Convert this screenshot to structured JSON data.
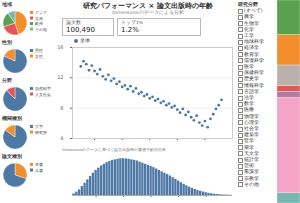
{
  "title": "研究パフォーマンス × 論文出版時の年齢",
  "subtitle": "Dimensionsのデータによる分析",
  "caption": "Dimensionsのデータに基づく論文出版時の著者年齢別分析",
  "kpis": [
    {
      "label": "論文数",
      "value": "100,490"
    },
    {
      "label": "トップ1%",
      "value": "1.2%"
    }
  ],
  "filter_list": {
    "title": "研究分野",
    "items": [
      "(すべて)",
      "農学",
      "生物学",
      "化学",
      "工学",
      "地球科学",
      "経済学",
      "教育学",
      "環境科学",
      "医学",
      "保健科学",
      "歴史学",
      "情報科学",
      "言語学",
      "法学",
      "数学",
      "医療",
      "物理学",
      "心理学",
      "社会学",
      "建築学",
      "哲学",
      "薬学",
      "天文学",
      "統計学",
      "芸術",
      "看護学",
      "宗教学",
      "その他"
    ]
  },
  "chart_data": [
    {
      "type": "pie",
      "title": "地域",
      "categories": [
        "アジア",
        "北米",
        "欧州",
        "その他"
      ],
      "values": [
        45,
        25,
        20,
        10
      ],
      "colors": [
        "#f28e2b",
        "#e15759",
        "#59a14f",
        "#76b7b2"
      ]
    },
    {
      "type": "pie",
      "title": "性別",
      "categories": [
        "男性",
        "女性"
      ],
      "values": [
        82,
        18
      ],
      "colors": [
        "#4e79a7",
        "#f28e2b"
      ]
    },
    {
      "type": "pie",
      "title": "分野",
      "categories": [
        "自然科学",
        "人文社会"
      ],
      "values": [
        88,
        12
      ],
      "colors": [
        "#4e79a7",
        "#e15759"
      ]
    },
    {
      "type": "pie",
      "title": "機関種別",
      "categories": [
        "大学",
        "研究所"
      ],
      "values": [
        85,
        15
      ],
      "colors": [
        "#4e79a7",
        "#f28e2b"
      ]
    },
    {
      "type": "pie",
      "title": "論文種別",
      "categories": [
        "単著",
        "共著"
      ],
      "values": [
        30,
        70
      ],
      "colors": [
        "#f28e2b",
        "#4e79a7"
      ]
    },
    {
      "type": "scatter",
      "legend": "top-left",
      "grid": true,
      "marker": "circle",
      "x": [
        25,
        26,
        27,
        28,
        29,
        30,
        31,
        32,
        33,
        34,
        35,
        36,
        37,
        38,
        39,
        40,
        41,
        42,
        43,
        44,
        45,
        46,
        47,
        48,
        49,
        50,
        51,
        52,
        53,
        54,
        55,
        56,
        57,
        58,
        59,
        60,
        61,
        62,
        63,
        64,
        65,
        66,
        67,
        68,
        69,
        70,
        71,
        72,
        73,
        74,
        75,
        76
      ],
      "series": [
        {
          "name": "全体",
          "color": "#4e79a7",
          "values": [
            13.5,
            14.2,
            13.8,
            13.0,
            13.6,
            12.9,
            12.5,
            13.1,
            12.2,
            11.8,
            12.4,
            11.6,
            11.9,
            11.2,
            11.5,
            10.8,
            11.0,
            10.5,
            10.9,
            10.2,
            10.6,
            9.9,
            10.1,
            9.6,
            9.8,
            9.3,
            9.5,
            9.0,
            9.2,
            8.7,
            8.9,
            8.4,
            8.6,
            8.1,
            8.3,
            7.8,
            7.4,
            7.9,
            7.1,
            7.5,
            6.8,
            6.4,
            7.0,
            6.1,
            5.7,
            6.3,
            5.5,
            6.6,
            7.2,
            7.9,
            8.4,
            9.1
          ]
        }
      ],
      "xlim": [
        22,
        80
      ],
      "xticks": [
        30,
        40,
        50,
        60,
        70
      ],
      "ylim": [
        4,
        16
      ],
      "yticks": [
        4,
        8,
        12,
        16
      ]
    },
    {
      "type": "bar",
      "tick_labels": "x",
      "color": "#4e79a7",
      "categories": [
        22,
        23,
        24,
        25,
        26,
        27,
        28,
        29,
        30,
        31,
        32,
        33,
        34,
        35,
        36,
        37,
        38,
        39,
        40,
        41,
        42,
        43,
        44,
        45,
        46,
        47,
        48,
        49,
        50,
        51,
        52,
        53,
        54,
        55,
        56,
        57,
        58,
        59,
        60,
        61,
        62,
        63,
        64,
        65,
        66,
        67,
        68,
        69,
        70,
        71,
        72,
        73,
        74,
        75,
        76,
        77,
        78,
        79
      ],
      "values": [
        150,
        300,
        500,
        800,
        1100,
        1400,
        1700,
        2000,
        2250,
        2450,
        2650,
        2800,
        2950,
        3050,
        3150,
        3200,
        3250,
        3300,
        3300,
        3280,
        3250,
        3200,
        3150,
        3100,
        3000,
        2900,
        2800,
        2700,
        2600,
        2500,
        2380,
        2250,
        2120,
        2000,
        1880,
        1750,
        1600,
        1450,
        1300,
        1150,
        1000,
        870,
        750,
        640,
        540,
        450,
        380,
        310,
        250,
        200,
        160,
        120,
        90,
        70,
        50,
        40,
        30,
        20
      ],
      "xticks": [
        30,
        40,
        50,
        60,
        70
      ],
      "ylim": [
        0,
        3500
      ]
    },
    {
      "type": "bar",
      "stacked": true,
      "tick_labels": false,
      "values": [
        5,
        47,
        3,
        3,
        10,
        15,
        17
      ],
      "colors": [
        "#76b7b2",
        "#f5a3c7",
        "#b07aa1",
        "#e15759",
        "#bab0ac",
        "#f28e2b",
        "#59a14f"
      ],
      "ylim": [
        0,
        100
      ]
    }
  ]
}
